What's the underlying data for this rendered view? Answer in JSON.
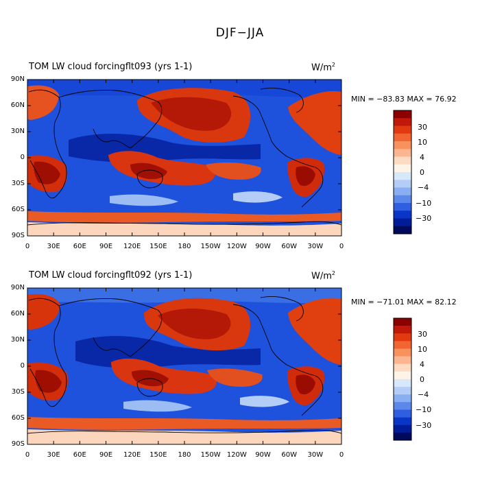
{
  "figure": {
    "title": "DJF−JJA"
  },
  "panels": [
    {
      "title": "TOM LW cloud forcingflt093 (yrs 1-1)",
      "units": "W/m",
      "units_exp": "2",
      "stats": "MIN = −83.83 MAX =  76.92"
    },
    {
      "title": "TOM LW cloud forcingflt092 (yrs 1-1)",
      "units": "W/m",
      "units_exp": "2",
      "stats": "MIN = −71.01 MAX =  82.12"
    }
  ],
  "axes": {
    "x_ticks": [
      "0",
      "30E",
      "60E",
      "90E",
      "120E",
      "150E",
      "180",
      "150W",
      "120W",
      "90W",
      "60W",
      "30W",
      "0"
    ],
    "y_ticks": [
      "90N",
      "60N",
      "30N",
      "0",
      "30S",
      "60S",
      "90S"
    ]
  },
  "colorbar": {
    "labels": [
      "30",
      "10",
      "4",
      "0",
      "−4",
      "−10",
      "−30"
    ],
    "colors": [
      "#8b0000",
      "#c0180a",
      "#e23a10",
      "#f26533",
      "#f7915e",
      "#fbb691",
      "#fddbc2",
      "#fdf3e6",
      "#d8e8fb",
      "#b4cdf7",
      "#8aaef2",
      "#5b88ea",
      "#2f5fe0",
      "#0a36c8",
      "#001c98",
      "#000a5c"
    ]
  }
}
